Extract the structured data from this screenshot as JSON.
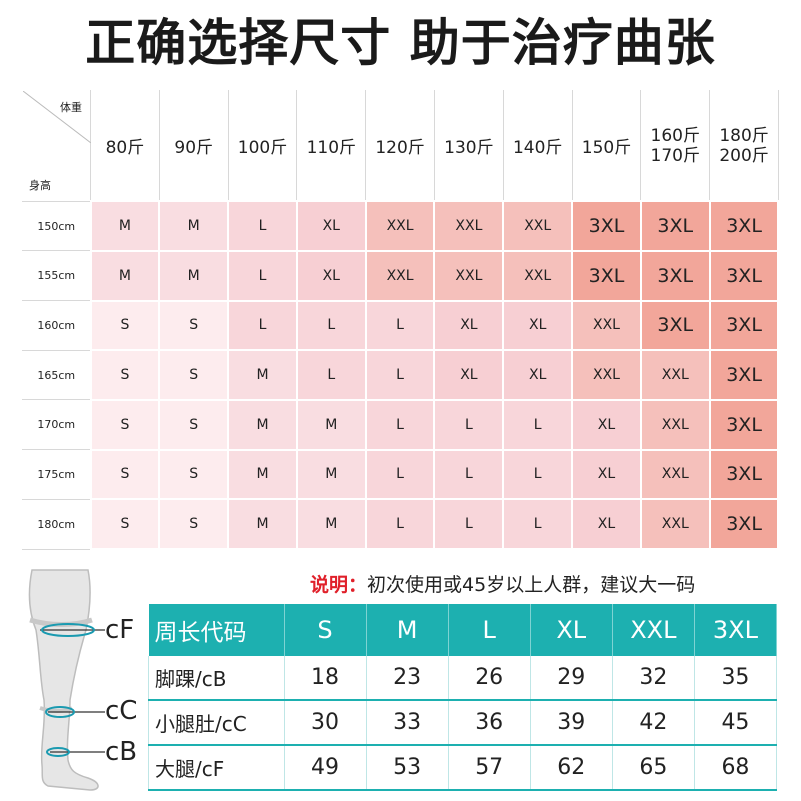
{
  "title": "正确选择尺寸 助于治疗曲张",
  "grid": {
    "corner_weight": "体重",
    "corner_height": "身高",
    "weights": [
      "80斤",
      "90斤",
      "100斤",
      "110斤",
      "120斤",
      "130斤",
      "140斤",
      "150斤"
    ],
    "weight_multi": [
      [
        "160斤",
        "170斤"
      ],
      [
        "180斤",
        "200斤"
      ]
    ],
    "rows": [
      {
        "height": "150cm",
        "sizes": [
          "M",
          "M",
          "L",
          "XL",
          "XXL",
          "XXL",
          "XXL",
          "3XL",
          "3XL",
          "3XL"
        ]
      },
      {
        "height": "155cm",
        "sizes": [
          "M",
          "M",
          "L",
          "XL",
          "XXL",
          "XXL",
          "XXL",
          "3XL",
          "3XL",
          "3XL"
        ]
      },
      {
        "height": "160cm",
        "sizes": [
          "S",
          "S",
          "L",
          "L",
          "L",
          "XL",
          "XL",
          "XXL",
          "3XL",
          "3XL"
        ]
      },
      {
        "height": "165cm",
        "sizes": [
          "S",
          "S",
          "M",
          "L",
          "L",
          "XL",
          "XL",
          "XXL",
          "XXL",
          "3XL"
        ]
      },
      {
        "height": "170cm",
        "sizes": [
          "S",
          "S",
          "M",
          "M",
          "L",
          "L",
          "L",
          "XL",
          "XXL",
          "3XL"
        ]
      },
      {
        "height": "175cm",
        "sizes": [
          "S",
          "S",
          "M",
          "M",
          "L",
          "L",
          "L",
          "XL",
          "XXL",
          "3XL"
        ]
      },
      {
        "height": "180cm",
        "sizes": [
          "S",
          "S",
          "M",
          "M",
          "L",
          "L",
          "L",
          "XL",
          "XXL",
          "3XL"
        ]
      }
    ],
    "colors": {
      "S": "#fdecee",
      "M": "#f9dde1",
      "L": "#f8d6da",
      "XL": "#f7cfd3",
      "XXL": "#f5c0bb",
      "3XL": "#f2a69a"
    }
  },
  "note": {
    "label": "说明：",
    "text": "初次使用或45岁以上人群，建议大一码",
    "label_color": "#e0202a"
  },
  "leg_labels": {
    "top": "cF",
    "middle": "cC",
    "bottom": "cB"
  },
  "measure": {
    "header": [
      "周长代码",
      "S",
      "M",
      "L",
      "XL",
      "XXL",
      "3XL"
    ],
    "rows": [
      [
        "脚踝/cB",
        "18",
        "23",
        "26",
        "29",
        "32",
        "35"
      ],
      [
        "小腿肚/cC",
        "30",
        "33",
        "36",
        "39",
        "42",
        "45"
      ],
      [
        "大腿/cF",
        "49",
        "53",
        "57",
        "62",
        "65",
        "68"
      ]
    ],
    "accent": "#1db0b0"
  }
}
